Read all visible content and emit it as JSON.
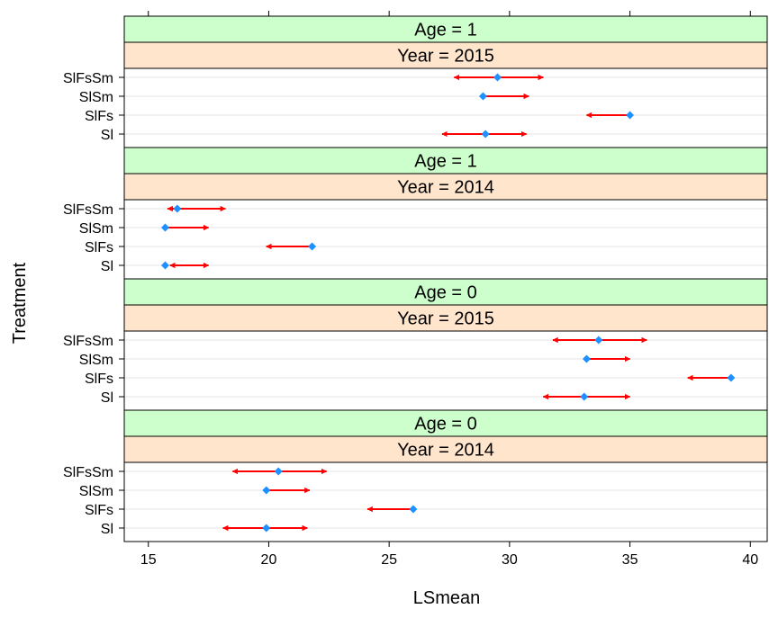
{
  "chart_data": {
    "type": "scatter",
    "xlabel": "LSmean",
    "ylabel": "Treatment",
    "xlim": [
      14,
      40.7
    ],
    "x_ticks": [
      15,
      20,
      25,
      30,
      35,
      40
    ],
    "categories": [
      "SlFsSm",
      "SlSm",
      "SlFs",
      "Sl"
    ],
    "colors": {
      "point": "#1e90ff",
      "arrow": "#ff0000",
      "age_strip": "#ccffcc",
      "year_strip": "#ffe5cc",
      "gridline": "#e6e6e6"
    },
    "panels": [
      {
        "age_label": "Age = 1",
        "year_label": "Year = 2015",
        "rows": [
          {
            "label": "SlFsSm",
            "lsmean": 29.5,
            "arrow_left": 27.7,
            "arrow_right": 31.4
          },
          {
            "label": "SlSm",
            "lsmean": 28.9,
            "arrow_left": 28.9,
            "arrow_right": 30.8
          },
          {
            "label": "SlFs",
            "lsmean": 35.0,
            "arrow_left": 33.2,
            "arrow_right": 35.0
          },
          {
            "label": "Sl",
            "lsmean": 29.0,
            "arrow_left": 27.2,
            "arrow_right": 30.7
          }
        ]
      },
      {
        "age_label": "Age = 1",
        "year_label": "Year = 2014",
        "rows": [
          {
            "label": "SlFsSm",
            "lsmean": 16.2,
            "arrow_left": 15.8,
            "arrow_right": 18.2
          },
          {
            "label": "SlSm",
            "lsmean": 15.7,
            "arrow_left": 15.7,
            "arrow_right": 17.5
          },
          {
            "label": "SlFs",
            "lsmean": 21.8,
            "arrow_left": 19.9,
            "arrow_right": 21.8
          },
          {
            "label": "Sl",
            "lsmean": 15.7,
            "arrow_left": 15.9,
            "arrow_right": 17.5
          }
        ]
      },
      {
        "age_label": "Age = 0",
        "year_label": "Year = 2015",
        "rows": [
          {
            "label": "SlFsSm",
            "lsmean": 33.7,
            "arrow_left": 31.8,
            "arrow_right": 35.7
          },
          {
            "label": "SlSm",
            "lsmean": 33.2,
            "arrow_left": 33.2,
            "arrow_right": 35.0
          },
          {
            "label": "SlFs",
            "lsmean": 39.2,
            "arrow_left": 37.4,
            "arrow_right": 39.2
          },
          {
            "label": "Sl",
            "lsmean": 33.1,
            "arrow_left": 31.4,
            "arrow_right": 35.0
          }
        ]
      },
      {
        "age_label": "Age = 0",
        "year_label": "Year = 2014",
        "rows": [
          {
            "label": "SlFsSm",
            "lsmean": 20.4,
            "arrow_left": 18.5,
            "arrow_right": 22.4
          },
          {
            "label": "SlSm",
            "lsmean": 19.9,
            "arrow_left": 19.9,
            "arrow_right": 21.7
          },
          {
            "label": "SlFs",
            "lsmean": 26.0,
            "arrow_left": 24.1,
            "arrow_right": 26.0
          },
          {
            "label": "Sl",
            "lsmean": 19.9,
            "arrow_left": 18.1,
            "arrow_right": 21.6
          }
        ]
      }
    ]
  }
}
